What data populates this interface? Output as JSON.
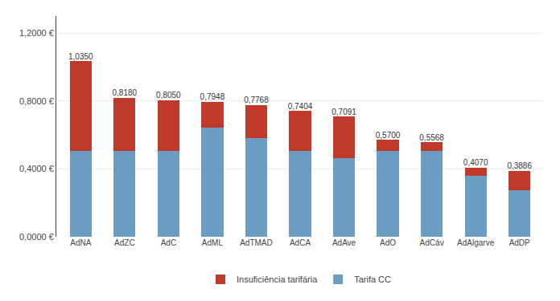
{
  "chart_data": {
    "type": "bar",
    "stacked": true,
    "categories": [
      "AdNA",
      "AdZC",
      "AdC",
      "AdML",
      "AdTMAD",
      "AdCA",
      "AdAve",
      "AdO",
      "AdCáv",
      "AdAlgarve",
      "AdDP"
    ],
    "series": [
      {
        "name": "Tarifa CC",
        "color": "#6B9DC2",
        "values": [
          0.505,
          0.505,
          0.505,
          0.645,
          0.58,
          0.505,
          0.465,
          0.505,
          0.505,
          0.36,
          0.275
        ]
      },
      {
        "name": "Insuficiência tarifária",
        "color": "#C0392B",
        "values": [
          0.53,
          0.313,
          0.3,
          0.1498,
          0.1968,
          0.2354,
          0.2441,
          0.065,
          0.0518,
          0.047,
          0.1136
        ]
      }
    ],
    "totals": [
      1.035,
      0.818,
      0.805,
      0.7948,
      0.7768,
      0.7404,
      0.7091,
      0.57,
      0.5568,
      0.407,
      0.3886
    ],
    "total_labels": [
      "1,0350",
      "0,8180",
      "0,8050",
      "0,7948",
      "0,7768",
      "0,7404",
      "0,7091",
      "0,5700",
      "0,5568",
      "0,4070",
      "0,3886"
    ],
    "ylim": [
      0,
      1.3
    ],
    "yticks": [
      {
        "value": 0.0,
        "label": "0,0000 €"
      },
      {
        "value": 0.4,
        "label": "0,4000 €"
      },
      {
        "value": 0.8,
        "label": "0,8000 €"
      },
      {
        "value": 1.2,
        "label": "1,2000 €"
      }
    ],
    "grid": true,
    "legend": "bottom"
  }
}
